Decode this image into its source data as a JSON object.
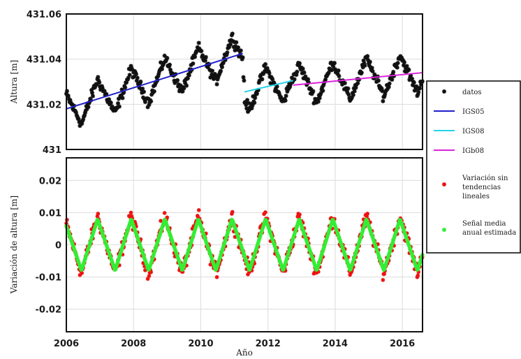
{
  "chart_data": [
    {
      "type": "scatter",
      "panel": "top",
      "xlabel": "",
      "ylabel": "Altura [m]",
      "xlim": [
        2006,
        2016.6
      ],
      "ylim": [
        431,
        431.06
      ],
      "yticks": [
        "431",
        "431.02",
        "431.04",
        "431.06"
      ],
      "grid": true,
      "series": [
        {
          "name": "datos",
          "style": "black asterisk markers",
          "description": "weekly height solutions oscillating annually ~0.01 m around trend",
          "trend_segments": [
            {
              "x": [
                2006.0,
                2011.25
              ],
              "y": [
                431.018,
                431.0425
              ]
            },
            {
              "x": [
                2011.3,
                2012.75
              ],
              "y": [
                431.0255,
                431.0305
              ]
            },
            {
              "x": [
                2012.75,
                2016.6
              ],
              "y": [
                431.0285,
                431.034
              ]
            }
          ]
        },
        {
          "name": "IGS05",
          "color": "#1f1fcc",
          "x": [
            2006.0,
            2011.25
          ],
          "y": [
            431.018,
            431.0425
          ]
        },
        {
          "name": "IGS08",
          "color": "#22d3e8",
          "x": [
            2011.3,
            2012.75
          ],
          "y": [
            431.0255,
            431.0305
          ]
        },
        {
          "name": "IGb08",
          "color": "#dd22dd",
          "x": [
            2012.75,
            2016.6
          ],
          "y": [
            431.0285,
            431.034
          ]
        }
      ]
    },
    {
      "type": "scatter",
      "panel": "bottom",
      "xlabel": "Año",
      "ylabel": "Variación de altura [m]",
      "xlim": [
        2006,
        2016.6
      ],
      "ylim": [
        -0.027,
        0.027
      ],
      "xticks": [
        "2006",
        "2008",
        "2010",
        "2012",
        "2014",
        "2016"
      ],
      "yticks": [
        "0.02",
        "0.01",
        "0",
        "-0.01",
        "-0.02"
      ],
      "grid": true,
      "series": [
        {
          "name": "Variación sin tendencias lineales",
          "color": "#ee1111",
          "description": "detrended residuals, amplitude ~0.012 m with scatter"
        },
        {
          "name": "Señal media anual estimada",
          "color": "#33ee33",
          "description": "annual sawtooth-like signal, peaks ~0.008 near year-end, troughs ~-0.008 near mid-year"
        }
      ]
    }
  ],
  "legend": {
    "placement": "right",
    "entries": [
      {
        "label": "datos",
        "marker": "black-asterisk"
      },
      {
        "label": "IGS05",
        "marker": "line",
        "color": "#1f1fcc"
      },
      {
        "label": "IGS08",
        "marker": "line",
        "color": "#22d3e8"
      },
      {
        "label": "IGb08",
        "marker": "line",
        "color": "#dd22dd"
      },
      {
        "label": "Variación sin tendencias lineales",
        "lines": [
          "Variación sin",
          "tendencias",
          "lineales"
        ],
        "marker": "red-asterisk"
      },
      {
        "label": "Señal media anual estimada",
        "lines": [
          "Señal media",
          "anual estimada"
        ],
        "marker": "green-asterisk"
      }
    ]
  }
}
